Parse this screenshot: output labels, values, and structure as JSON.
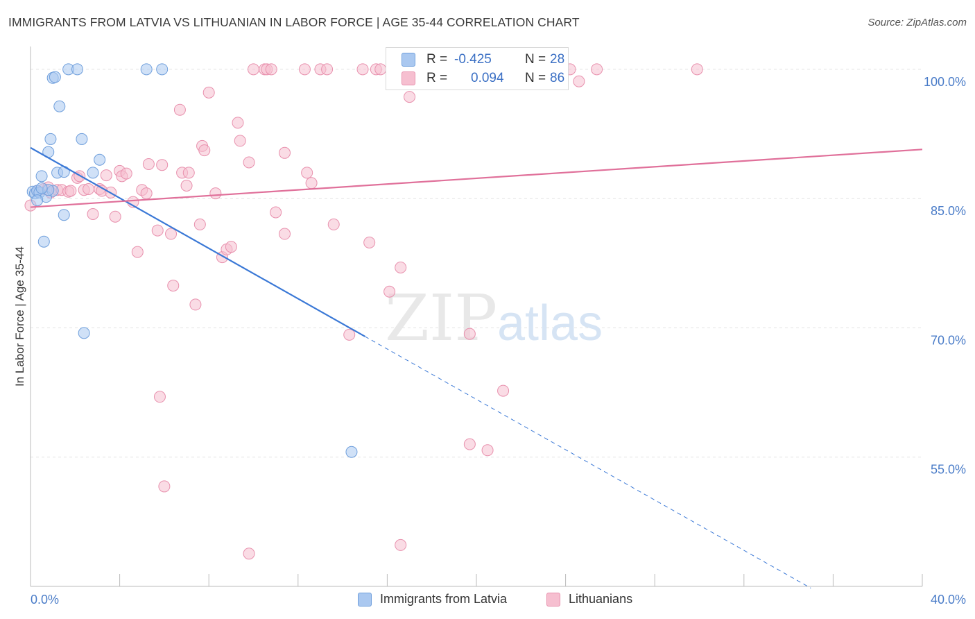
{
  "header": {
    "title": "IMMIGRANTS FROM LATVIA VS LITHUANIAN IN LABOR FORCE | AGE 35-44 CORRELATION CHART",
    "source": "Source: ZipAtlas.com"
  },
  "watermark": {
    "zip": "ZIP",
    "atlas": "atlas"
  },
  "stats_legend": {
    "rows": [
      {
        "r_label": "R =",
        "r_value": "-0.425",
        "n_label": "N =",
        "n_value": "28"
      },
      {
        "r_label": "R =",
        "r_value": "0.094",
        "n_label": "N =",
        "n_value": "86"
      }
    ]
  },
  "bottom_legend": {
    "series_1": "Immigrants from Latvia",
    "series_2": "Lithuanians"
  },
  "colors": {
    "blue_fill": "#aac8f0",
    "blue_stroke": "#6f9fdc",
    "blue_line": "#3a78d6",
    "pink_fill": "#f6bfd0",
    "pink_stroke": "#e890ad",
    "pink_line": "#e0709a",
    "tick_label": "#4a7cc8"
  },
  "chart_data": {
    "type": "scatter",
    "title": "IMMIGRANTS FROM LATVIA VS LITHUANIAN IN LABOR FORCE | AGE 35-44 CORRELATION CHART",
    "xlabel": "",
    "ylabel": "In Labor Force | Age 35-44",
    "xlim": [
      0,
      40
    ],
    "ylim": [
      40,
      102
    ],
    "x_tick_labels": [
      {
        "value": 0,
        "label": "0.0%"
      },
      {
        "value": 40,
        "label": "40.0%"
      }
    ],
    "y_tick_labels": [
      {
        "value": 100,
        "label": "100.0%"
      },
      {
        "value": 85,
        "label": "85.0%"
      },
      {
        "value": 70,
        "label": "70.0%"
      },
      {
        "value": 55,
        "label": "55.0%"
      }
    ],
    "y_gridlines": [
      100,
      85,
      70,
      55
    ],
    "x_minor_ticks": [
      0,
      4,
      8,
      12,
      16,
      20,
      24,
      28,
      32,
      36,
      40
    ],
    "grid": true,
    "legend_placement": "top-center",
    "series": [
      {
        "name": "Immigrants from Latvia",
        "color": "#aac8f0",
        "points": [
          [
            0.1,
            85.8
          ],
          [
            0.2,
            85.6
          ],
          [
            0.3,
            85.9
          ],
          [
            0.4,
            85.7
          ],
          [
            0.5,
            87.6
          ],
          [
            0.6,
            80.0
          ],
          [
            0.7,
            85.2
          ],
          [
            0.8,
            90.4
          ],
          [
            0.9,
            91.9
          ],
          [
            1.0,
            85.9
          ],
          [
            1.0,
            99.0
          ],
          [
            1.1,
            99.1
          ],
          [
            1.2,
            88.0
          ],
          [
            1.3,
            95.7
          ],
          [
            1.5,
            88.1
          ],
          [
            1.5,
            83.1
          ],
          [
            1.7,
            100.0
          ],
          [
            2.1,
            100.0
          ],
          [
            2.3,
            91.9
          ],
          [
            2.4,
            69.4
          ],
          [
            2.8,
            88.0
          ],
          [
            3.1,
            89.5
          ],
          [
            5.2,
            100.0
          ],
          [
            5.9,
            100.0
          ],
          [
            14.4,
            55.6
          ],
          [
            0.3,
            84.8
          ],
          [
            0.8,
            86.0
          ],
          [
            0.5,
            86.2
          ]
        ]
      },
      {
        "name": "Lithuanians",
        "color": "#f6bfd0",
        "points": [
          [
            0.0,
            84.2
          ],
          [
            0.3,
            85.9
          ],
          [
            0.6,
            86.1
          ],
          [
            0.8,
            86.3
          ],
          [
            0.9,
            85.7
          ],
          [
            1.2,
            86.0
          ],
          [
            1.4,
            86.0
          ],
          [
            1.7,
            85.8
          ],
          [
            1.8,
            85.9
          ],
          [
            2.1,
            87.4
          ],
          [
            2.2,
            87.6
          ],
          [
            2.4,
            86.0
          ],
          [
            2.6,
            86.1
          ],
          [
            2.8,
            83.2
          ],
          [
            3.1,
            86.1
          ],
          [
            3.2,
            85.9
          ],
          [
            3.4,
            87.7
          ],
          [
            3.6,
            85.7
          ],
          [
            3.8,
            82.9
          ],
          [
            4.0,
            88.2
          ],
          [
            4.1,
            87.6
          ],
          [
            4.3,
            87.9
          ],
          [
            4.6,
            84.6
          ],
          [
            4.8,
            78.8
          ],
          [
            5.0,
            86.0
          ],
          [
            5.2,
            85.6
          ],
          [
            5.3,
            89.0
          ],
          [
            5.7,
            81.3
          ],
          [
            5.8,
            62.0
          ],
          [
            5.9,
            88.9
          ],
          [
            6.0,
            51.6
          ],
          [
            6.3,
            80.9
          ],
          [
            6.4,
            74.9
          ],
          [
            6.7,
            95.3
          ],
          [
            6.8,
            88.0
          ],
          [
            7.0,
            86.5
          ],
          [
            7.1,
            88.0
          ],
          [
            7.4,
            72.7
          ],
          [
            7.6,
            82.0
          ],
          [
            7.7,
            91.1
          ],
          [
            7.8,
            90.6
          ],
          [
            8.0,
            97.3
          ],
          [
            8.3,
            85.6
          ],
          [
            8.6,
            78.2
          ],
          [
            8.8,
            79.1
          ],
          [
            9.0,
            79.4
          ],
          [
            9.3,
            93.8
          ],
          [
            9.4,
            91.7
          ],
          [
            9.8,
            89.2
          ],
          [
            9.8,
            43.8
          ],
          [
            10.0,
            100.0
          ],
          [
            10.5,
            100.0
          ],
          [
            10.6,
            100.0
          ],
          [
            10.8,
            100.0
          ],
          [
            11.0,
            83.4
          ],
          [
            11.4,
            80.9
          ],
          [
            11.4,
            90.3
          ],
          [
            12.3,
            100.0
          ],
          [
            12.4,
            88.0
          ],
          [
            12.6,
            86.8
          ],
          [
            13.0,
            100.0
          ],
          [
            13.3,
            100.0
          ],
          [
            13.6,
            82.0
          ],
          [
            14.3,
            69.2
          ],
          [
            14.9,
            100.0
          ],
          [
            15.2,
            79.9
          ],
          [
            15.5,
            100.0
          ],
          [
            15.7,
            100.0
          ],
          [
            16.1,
            74.2
          ],
          [
            16.2,
            100.0
          ],
          [
            16.6,
            77.0
          ],
          [
            16.6,
            44.8
          ],
          [
            16.7,
            100.0
          ],
          [
            17.0,
            96.8
          ],
          [
            18.1,
            100.0
          ],
          [
            19.7,
            69.3
          ],
          [
            19.7,
            56.5
          ],
          [
            20.5,
            55.8
          ],
          [
            20.9,
            100.0
          ],
          [
            21.2,
            62.7
          ],
          [
            21.5,
            100.0
          ],
          [
            22.4,
            100.0
          ],
          [
            24.2,
            100.0
          ],
          [
            24.6,
            98.6
          ],
          [
            25.4,
            100.0
          ],
          [
            29.9,
            100.0
          ]
        ]
      }
    ],
    "trend_lines": [
      {
        "series": "Immigrants from Latvia",
        "solid_from": [
          0,
          90.9
        ],
        "solid_to": [
          15.0,
          69.0
        ],
        "dashed_to": [
          35.0,
          39.8
        ]
      },
      {
        "series": "Lithuanians",
        "from": [
          0,
          84.0
        ],
        "to": [
          40,
          90.7
        ]
      }
    ]
  }
}
